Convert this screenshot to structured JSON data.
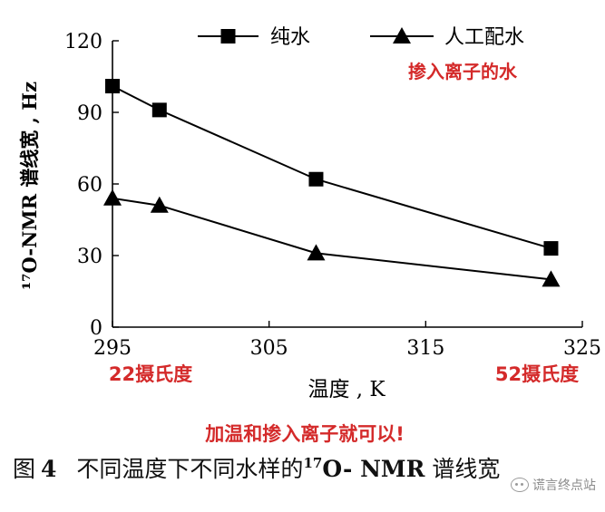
{
  "chart_data": {
    "type": "line",
    "xlabel": "温度 , K",
    "ylabel": "¹⁷O-NMR 谱线宽 , Hz",
    "xlim": [
      295,
      325
    ],
    "ylim": [
      0,
      120
    ],
    "xticks": [
      295,
      305,
      315,
      325
    ],
    "yticks": [
      0,
      30,
      60,
      90,
      120
    ],
    "legend_position": "top-right",
    "series": [
      {
        "name": "纯水",
        "marker": "square",
        "color": "#000000",
        "x": [
          295,
          298,
          308,
          323
        ],
        "y": [
          101,
          91,
          62,
          33
        ]
      },
      {
        "name": "人工配水",
        "marker": "triangle",
        "color": "#000000",
        "x": [
          295,
          298,
          308,
          323
        ],
        "y": [
          54,
          51,
          31,
          20
        ]
      }
    ],
    "annotations": {
      "legend_note": "掺入离子的水",
      "x_left_note": "22摄氏度",
      "x_right_note": "52摄氏度",
      "bottom_note": "加温和掺入离子就可以!"
    },
    "annotation_color": "#d42a2a"
  },
  "caption": {
    "fig": "图",
    "num": "4",
    "text_before": "不同温度下不同水样的",
    "sup": "17",
    "text_after": "O- NMR",
    "text_end": " 谱线宽"
  },
  "watermark": {
    "icon": "wechat-icon",
    "text": "谎言终点站"
  }
}
